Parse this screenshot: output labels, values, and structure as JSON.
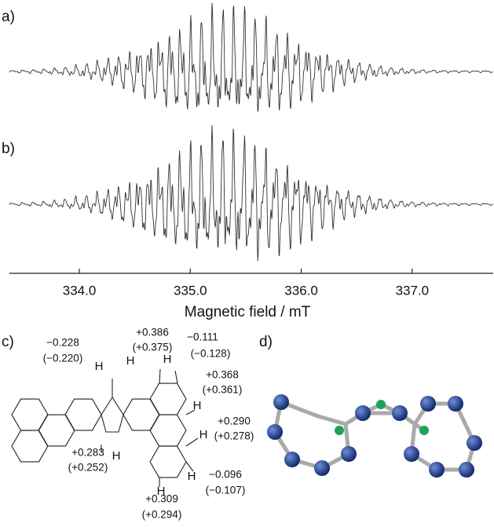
{
  "panels": {
    "a": "a)",
    "b": "b)",
    "c": "c)",
    "d": "d)"
  },
  "spectrum_axis": {
    "xlim": [
      333.37,
      337.73
    ],
    "xticks": [
      {
        "value": 334,
        "label": "334.0"
      },
      {
        "value": 335,
        "label": "335.0"
      },
      {
        "value": 336,
        "label": "336.0"
      },
      {
        "value": 337,
        "label": "337.0"
      }
    ],
    "label": "Magnetic field / mT"
  },
  "structure": {
    "couplings": [
      {
        "atom": "H",
        "value": "−0.228",
        "calc": "(−0.220)"
      },
      {
        "atom": "H",
        "value": "+0.386",
        "calc": "(+0.375)"
      },
      {
        "atom": "H",
        "value": "−0.111",
        "calc": "(−0.128)"
      },
      {
        "atom": "H",
        "value": "+0.368",
        "calc": "(+0.361)"
      },
      {
        "atom": "H",
        "value": "+0.290",
        "calc": "(+0.278)"
      },
      {
        "atom": "H",
        "value": "+0.283",
        "calc": "(+0.252)"
      },
      {
        "atom": "H",
        "value": "−0.096",
        "calc": "(−0.107)"
      },
      {
        "atom": "H",
        "value": "+0.309",
        "calc": "(+0.294)"
      }
    ]
  }
}
